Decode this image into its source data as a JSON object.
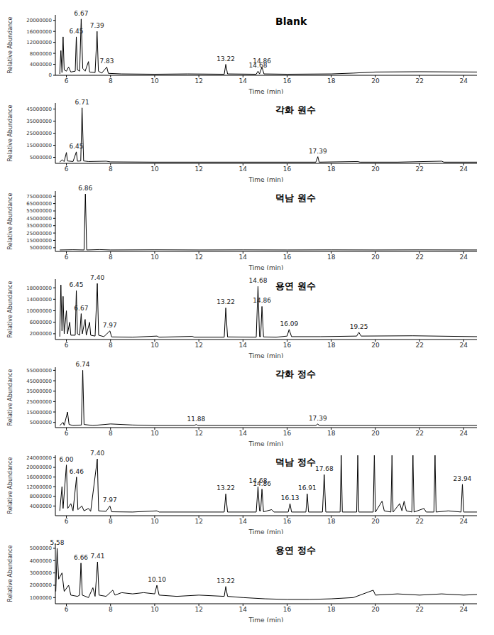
{
  "chart_data": [
    {
      "type": "line",
      "title": "Blank",
      "x_label": "Time (min)",
      "y_label": "Relative Abundance",
      "color": "#000000",
      "xlim": [
        5.5,
        24.6
      ],
      "xticks": [
        6,
        8,
        10,
        12,
        14,
        16,
        18,
        20,
        22,
        24
      ],
      "ylim": [
        0,
        22000000
      ],
      "yticks": [
        0,
        4000000,
        8000000,
        12000000,
        16000000,
        20000000
      ],
      "x": [
        5.7,
        5.75,
        5.8,
        5.85,
        5.9,
        6.0,
        6.1,
        6.2,
        6.4,
        6.45,
        6.5,
        6.6,
        6.67,
        6.74,
        6.85,
        7.0,
        7.05,
        7.3,
        7.39,
        7.45,
        7.6,
        7.83,
        7.9,
        8.5,
        10,
        11.5,
        13.15,
        13.22,
        13.3,
        14.6,
        14.68,
        14.75,
        14.86,
        14.95,
        16,
        18,
        19,
        20,
        22,
        24.6
      ],
      "values": [
        500000,
        9000000,
        1000000,
        14000000,
        2000000,
        1500000,
        3000000,
        1200000,
        1500000,
        14000000,
        2000000,
        1500000,
        20500000,
        2500000,
        1500000,
        5000000,
        1200000,
        1000000,
        16000000,
        1500000,
        800000,
        3000000,
        700000,
        500000,
        400000,
        500000,
        400000,
        4000000,
        500000,
        400000,
        1500000,
        500000,
        3000000,
        500000,
        400000,
        500000,
        800000,
        1200000,
        1300000,
        1200000
      ],
      "annotations": [
        {
          "x": 6.45,
          "y": 14000000,
          "text": "6.45"
        },
        {
          "x": 6.67,
          "y": 20500000,
          "text": "6.67"
        },
        {
          "x": 7.39,
          "y": 16000000,
          "text": "7.39"
        },
        {
          "x": 7.83,
          "y": 3000000,
          "text": "7.83"
        },
        {
          "x": 13.22,
          "y": 4000000,
          "text": "13.22"
        },
        {
          "x": 14.68,
          "y": 1500000,
          "text": "14.68"
        },
        {
          "x": 14.86,
          "y": 3000000,
          "text": "14.86"
        }
      ]
    },
    {
      "type": "line",
      "title": "각화 원수",
      "x_label": "Time (min)",
      "y_label": "Relative Abundance",
      "color": "#000000",
      "xlim": [
        5.5,
        24.6
      ],
      "xticks": [
        6,
        8,
        10,
        12,
        14,
        16,
        18,
        20,
        22,
        24
      ],
      "ylim": [
        0,
        50000000
      ],
      "yticks": [
        5000000,
        15000000,
        25000000,
        35000000,
        45000000
      ],
      "x": [
        5.7,
        5.8,
        5.9,
        6.0,
        6.05,
        6.3,
        6.45,
        6.5,
        6.65,
        6.71,
        6.78,
        7.0,
        7.8,
        8,
        10,
        12,
        14,
        16,
        17.3,
        17.39,
        17.45,
        19.2,
        19.3,
        21,
        23,
        23.1,
        24.6
      ],
      "values": [
        1000000,
        3000000,
        1500000,
        9000000,
        2000000,
        1500000,
        9500000,
        1800000,
        2000000,
        46000000,
        2000000,
        1500000,
        1800000,
        1200000,
        1000000,
        1000000,
        1000000,
        1000000,
        1000000,
        5500000,
        1000000,
        1500000,
        1000000,
        1000000,
        1800000,
        1000000,
        1000000
      ],
      "annotations": [
        {
          "x": 6.45,
          "y": 9500000,
          "text": "6.45"
        },
        {
          "x": 6.71,
          "y": 46000000,
          "text": "6.71"
        },
        {
          "x": 17.39,
          "y": 5500000,
          "text": "17.39"
        }
      ]
    },
    {
      "type": "line",
      "title": "덕남 원수",
      "x_label": "Time (min)",
      "y_label": "Relative Abundance",
      "color": "#000000",
      "xlim": [
        5.5,
        24.6
      ],
      "xticks": [
        6,
        8,
        10,
        12,
        14,
        16,
        18,
        20,
        22,
        24
      ],
      "ylim": [
        0,
        82000000
      ],
      "yticks": [
        5000000,
        15000000,
        25000000,
        35000000,
        45000000,
        55000000,
        65000000,
        75000000
      ],
      "x": [
        5.7,
        6.3,
        6.8,
        6.86,
        6.92,
        7.5,
        8,
        10,
        12,
        14,
        16,
        18,
        20,
        22,
        24.6
      ],
      "values": [
        2000000,
        2300000,
        2000000,
        78000000,
        2000000,
        2500000,
        2000000,
        2200000,
        2000000,
        2100000,
        2000000,
        2100000,
        2000000,
        2100000,
        2000000
      ],
      "annotations": [
        {
          "x": 6.86,
          "y": 78000000,
          "text": "6.86"
        }
      ]
    },
    {
      "type": "line",
      "title": "용연 원수",
      "x_label": "Time (min)",
      "y_label": "Relative Abundance",
      "color": "#000000",
      "xlim": [
        5.5,
        24.6
      ],
      "xticks": [
        6,
        8,
        10,
        12,
        14,
        16,
        18,
        20,
        22,
        24
      ],
      "ylim": [
        0,
        21000000
      ],
      "yticks": [
        2000000,
        6000000,
        10000000,
        14000000,
        18000000
      ],
      "x": [
        5.7,
        5.75,
        5.8,
        5.85,
        5.9,
        6.0,
        6.05,
        6.15,
        6.2,
        6.4,
        6.45,
        6.5,
        6.6,
        6.67,
        6.72,
        6.85,
        6.9,
        7.05,
        7.1,
        7.3,
        7.4,
        7.46,
        7.7,
        7.97,
        8.05,
        9,
        10.1,
        10.2,
        11.7,
        11.8,
        13.15,
        13.22,
        13.3,
        14.6,
        14.68,
        14.75,
        14.8,
        14.86,
        14.93,
        15.5,
        16.0,
        16.09,
        16.2,
        17.5,
        19.15,
        19.25,
        19.35,
        21.7,
        24.6
      ],
      "values": [
        1000000,
        19000000,
        3000000,
        15000000,
        2000000,
        10000000,
        2000000,
        6000000,
        1500000,
        1500000,
        17000000,
        2000000,
        1500000,
        9000000,
        2000000,
        7000000,
        1500000,
        6000000,
        1500000,
        1200000,
        19500000,
        1500000,
        1000000,
        3000000,
        900000,
        800000,
        1200000,
        800000,
        1100000,
        800000,
        800000,
        11000000,
        900000,
        800000,
        18500000,
        1000000,
        1000000,
        11500000,
        900000,
        800000,
        1200000,
        3500000,
        1000000,
        1000000,
        1200000,
        2500000,
        1200000,
        1300000,
        1000000
      ],
      "annotations": [
        {
          "x": 6.45,
          "y": 17000000,
          "text": "6.45"
        },
        {
          "x": 6.67,
          "y": 9000000,
          "text": "6.67"
        },
        {
          "x": 7.4,
          "y": 19500000,
          "text": "7.40"
        },
        {
          "x": 7.97,
          "y": 3000000,
          "text": "7.97"
        },
        {
          "x": 13.22,
          "y": 11000000,
          "text": "13.22"
        },
        {
          "x": 14.68,
          "y": 18500000,
          "text": "14.68"
        },
        {
          "x": 14.86,
          "y": 11500000,
          "text": "14.86"
        },
        {
          "x": 16.09,
          "y": 3500000,
          "text": "16.09"
        },
        {
          "x": 19.25,
          "y": 2500000,
          "text": "19.25"
        }
      ]
    },
    {
      "type": "line",
      "title": "각화 정수",
      "x_label": "Time (min)",
      "y_label": "Relative Abundance",
      "color": "#000000",
      "xlim": [
        5.5,
        24.6
      ],
      "xticks": [
        6,
        8,
        10,
        12,
        14,
        16,
        18,
        20,
        22,
        24
      ],
      "ylim": [
        0,
        58000000
      ],
      "yticks": [
        5000000,
        15000000,
        25000000,
        35000000,
        45000000,
        55000000
      ],
      "x": [
        5.7,
        5.85,
        5.9,
        6.05,
        6.12,
        6.3,
        6.68,
        6.74,
        6.8,
        7.2,
        8,
        9,
        10,
        11.8,
        11.88,
        11.95,
        14,
        17.3,
        17.39,
        17.45,
        20,
        24.6
      ],
      "values": [
        2000000,
        5000000,
        2000000,
        15000000,
        3000000,
        2000000,
        2500000,
        55000000,
        3000000,
        2000000,
        3500000,
        2500000,
        2000000,
        2000000,
        3000000,
        2000000,
        2000000,
        2000000,
        3500000,
        2000000,
        2000000,
        2000000
      ],
      "annotations": [
        {
          "x": 6.74,
          "y": 55000000,
          "text": "6.74"
        },
        {
          "x": 11.88,
          "y": 3000000,
          "text": "11.88"
        },
        {
          "x": 17.39,
          "y": 3500000,
          "text": "17.39"
        }
      ]
    },
    {
      "type": "line",
      "title": "덕남 정수",
      "x_label": "Time (min)",
      "y_label": "Relative Abundance",
      "color": "#000000",
      "xlim": [
        5.5,
        24.6
      ],
      "xticks": [
        6,
        8,
        10,
        12,
        14,
        16,
        18,
        20,
        22,
        24
      ],
      "ylim": [
        0,
        25000000
      ],
      "yticks": [
        4000000,
        8000000,
        12000000,
        16000000,
        20000000,
        24000000
      ],
      "x": [
        5.7,
        5.8,
        5.85,
        6.0,
        6.06,
        6.2,
        6.3,
        6.46,
        6.52,
        6.7,
        6.8,
        7.0,
        7.1,
        7.4,
        7.46,
        7.8,
        7.97,
        8.05,
        9,
        10.1,
        10.2,
        13.15,
        13.22,
        13.3,
        14.6,
        14.68,
        14.75,
        14.8,
        14.86,
        14.93,
        15.3,
        15.4,
        16.05,
        16.13,
        16.2,
        16.85,
        16.91,
        16.97,
        17.6,
        17.68,
        17.75,
        18.4,
        18.45,
        18.5,
        19.15,
        19.2,
        19.25,
        19.9,
        19.95,
        20.0,
        20.3,
        20.4,
        20.7,
        20.75,
        20.8,
        21.1,
        21.2,
        21.3,
        21.4,
        21.65,
        21.7,
        21.75,
        22.2,
        22.3,
        22.65,
        22.7,
        22.75,
        23.3,
        23.88,
        23.94,
        24.0,
        24.6
      ],
      "values": [
        2000000,
        12000000,
        3000000,
        21000000,
        3000000,
        5000000,
        2000000,
        16000000,
        2500000,
        4000000,
        2000000,
        3000000,
        1800000,
        23500000,
        2000000,
        1800000,
        4000000,
        1600000,
        1500000,
        2000000,
        1500000,
        1500000,
        9000000,
        1500000,
        1500000,
        12000000,
        2000000,
        2000000,
        11000000,
        1600000,
        2500000,
        1500000,
        1500000,
        5000000,
        1500000,
        1500000,
        9000000,
        1500000,
        1500000,
        17000000,
        1500000,
        1500000,
        25000000,
        1500000,
        1500000,
        25000000,
        1500000,
        1500000,
        25000000,
        1500000,
        6000000,
        2000000,
        1500000,
        25000000,
        1500000,
        5000000,
        2000000,
        6000000,
        2000000,
        1500000,
        25000000,
        1500000,
        3000000,
        1500000,
        1500000,
        25000000,
        1500000,
        2000000,
        1500000,
        13000000,
        1500000,
        1500000
      ],
      "annotations": [
        {
          "x": 6.0,
          "y": 21000000,
          "text": "6.00"
        },
        {
          "x": 6.46,
          "y": 16000000,
          "text": "6.46"
        },
        {
          "x": 7.4,
          "y": 23500000,
          "text": "7.40"
        },
        {
          "x": 7.97,
          "y": 4000000,
          "text": "7.97"
        },
        {
          "x": 13.22,
          "y": 9000000,
          "text": "13.22"
        },
        {
          "x": 14.68,
          "y": 12000000,
          "text": "14.68"
        },
        {
          "x": 14.86,
          "y": 11000000,
          "text": "14.86"
        },
        {
          "x": 16.13,
          "y": 5000000,
          "text": "16.13"
        },
        {
          "x": 16.91,
          "y": 9000000,
          "text": "16.91"
        },
        {
          "x": 17.68,
          "y": 17000000,
          "text": "17.68"
        },
        {
          "x": 23.94,
          "y": 13000000,
          "text": "23.94"
        }
      ]
    },
    {
      "type": "line",
      "title": "용연 정수",
      "x_label": "Time (min)",
      "y_label": "Relative Abundance",
      "color": "#000000",
      "xlim": [
        5.5,
        24.6
      ],
      "xticks": [
        6,
        8,
        10,
        12,
        14,
        16,
        18,
        20,
        22,
        24
      ],
      "ylim": [
        500000,
        5400000
      ],
      "yticks": [
        1000000,
        2000000,
        3000000,
        4000000,
        5000000
      ],
      "x": [
        5.52,
        5.58,
        5.65,
        5.8,
        5.9,
        6.1,
        6.2,
        6.5,
        6.6,
        6.66,
        6.72,
        7.0,
        7.2,
        7.3,
        7.41,
        7.48,
        7.8,
        8.1,
        8.2,
        8.5,
        9,
        9.5,
        10.0,
        10.1,
        10.2,
        11,
        12,
        13.15,
        13.22,
        13.3,
        14,
        15,
        16,
        17,
        18,
        19,
        19.9,
        20.0,
        21,
        22,
        23,
        24,
        24.6
      ],
      "values": [
        1500000,
        5000000,
        2500000,
        3000000,
        1500000,
        2000000,
        1200000,
        1100000,
        1200000,
        3800000,
        1200000,
        1000000,
        1800000,
        1100000,
        3900000,
        1200000,
        1100000,
        1600000,
        1200000,
        1400000,
        1300000,
        1400000,
        1300000,
        2000000,
        1200000,
        1100000,
        1200000,
        1100000,
        1900000,
        1100000,
        1000000,
        900000,
        850000,
        850000,
        900000,
        1000000,
        1600000,
        1200000,
        1300000,
        1200000,
        1300000,
        1200000,
        1250000
      ],
      "annotations": [
        {
          "x": 5.58,
          "y": 5000000,
          "text": "5.58"
        },
        {
          "x": 6.66,
          "y": 3800000,
          "text": "6.66"
        },
        {
          "x": 7.41,
          "y": 3900000,
          "text": "7.41"
        },
        {
          "x": 10.1,
          "y": 2000000,
          "text": "10.10"
        },
        {
          "x": 13.22,
          "y": 1900000,
          "text": "13.22"
        }
      ]
    }
  ]
}
